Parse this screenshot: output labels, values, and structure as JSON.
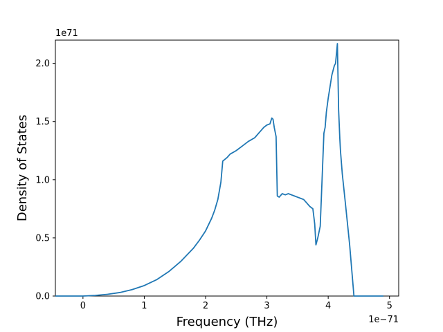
{
  "chart_data": {
    "type": "line",
    "title": "",
    "xlabel": "Frequency (THz)",
    "ylabel": "Density of States",
    "x_offset_label": "1e−71",
    "y_offset_label": "1e71",
    "xlim": [
      -0.45,
      5.15
    ],
    "ylim": [
      0,
      2.2
    ],
    "x_ticks": [
      0,
      1,
      2,
      3,
      4,
      5
    ],
    "x_tick_labels": [
      "0",
      "1",
      "2",
      "3",
      "4",
      "5"
    ],
    "y_ticks": [
      0,
      0.5,
      1.0,
      1.5,
      2.0
    ],
    "y_tick_labels": [
      "0.0",
      "0.5",
      "1.0",
      "1.5",
      "2.0"
    ],
    "grid": false,
    "line_color": "#1f77b4",
    "series": [
      {
        "x": [
          -0.45,
          0.0,
          0.2,
          0.4,
          0.6,
          0.8,
          1.0,
          1.2,
          1.4,
          1.6,
          1.8,
          1.9,
          2.0,
          2.1,
          2.15,
          2.2,
          2.25,
          2.28,
          2.35,
          2.4,
          2.5,
          2.6,
          2.7,
          2.8,
          2.9,
          2.95,
          3.0,
          3.05,
          3.08,
          3.1,
          3.12,
          3.15,
          3.17,
          3.2,
          3.25,
          3.3,
          3.35,
          3.4,
          3.45,
          3.5,
          3.55,
          3.6,
          3.65,
          3.7,
          3.75,
          3.78,
          3.8,
          3.83,
          3.87,
          3.9,
          3.93,
          3.95,
          3.97,
          4.0,
          4.03,
          4.06,
          4.1,
          4.12,
          4.15,
          4.17,
          4.19,
          4.2,
          4.23,
          4.28,
          4.35,
          4.42,
          4.48,
          4.5,
          4.9
        ],
        "y": [
          0.0,
          0.0,
          0.005,
          0.015,
          0.03,
          0.055,
          0.09,
          0.14,
          0.21,
          0.3,
          0.41,
          0.48,
          0.56,
          0.67,
          0.74,
          0.83,
          0.98,
          1.16,
          1.19,
          1.22,
          1.25,
          1.29,
          1.33,
          1.36,
          1.42,
          1.45,
          1.47,
          1.48,
          1.53,
          1.52,
          1.45,
          1.37,
          0.86,
          0.85,
          0.88,
          0.87,
          0.88,
          0.87,
          0.86,
          0.85,
          0.84,
          0.83,
          0.8,
          0.77,
          0.75,
          0.62,
          0.44,
          0.5,
          0.6,
          1.0,
          1.4,
          1.45,
          1.58,
          1.7,
          1.8,
          1.9,
          1.98,
          2.0,
          2.17,
          1.6,
          1.35,
          1.25,
          1.05,
          0.8,
          0.44,
          0.0,
          0.0,
          0.0,
          0.0
        ]
      }
    ]
  }
}
